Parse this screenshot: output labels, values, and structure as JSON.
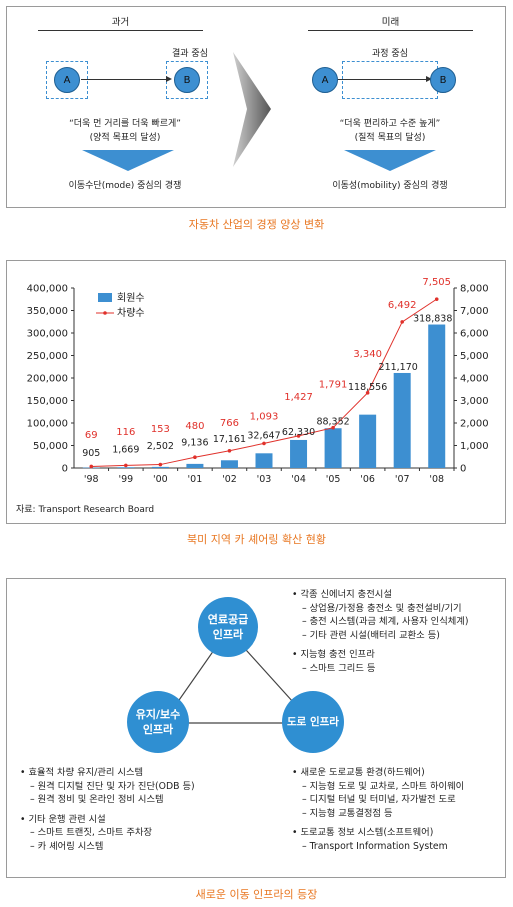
{
  "fig1": {
    "past": {
      "header": "과거",
      "focus": "결과 중심",
      "node_a": "A",
      "node_b": "B",
      "quote": "“더욱 먼 거리를 더욱 빠르게”",
      "sub": "(양적 목표의 달성)",
      "result": "이동수단(mode) 중심의 경쟁"
    },
    "future": {
      "header": "미래",
      "focus": "과정 중심",
      "node_a": "A",
      "node_b": "B",
      "quote": "“더욱 편리하고 수준 높게”",
      "sub": "(질적 목표의 달성)",
      "result": "이동성(mobility) 중심의 경쟁"
    },
    "caption": "자동차 산업의 경쟁 양상 변화"
  },
  "chart_data": {
    "type": "bar",
    "categories": [
      "'98",
      "'99",
      "'00",
      "'01",
      "'02",
      "'03",
      "'04",
      "'05",
      "'06",
      "'07",
      "'08"
    ],
    "series": [
      {
        "name": "회원수",
        "kind": "bar",
        "axis": "left",
        "color": "#3d8fd1",
        "values": [
          905,
          1669,
          2502,
          9136,
          17161,
          32647,
          62330,
          88352,
          118556,
          211170,
          318838
        ],
        "labels": [
          "905",
          "1,669",
          "2,502",
          "9,136",
          "17,161",
          "32,647",
          "62,330",
          "88,352",
          "118,556",
          "211,170",
          "318,838"
        ]
      },
      {
        "name": "차량수",
        "kind": "line",
        "axis": "right",
        "color": "#e0312b",
        "values": [
          69,
          116,
          153,
          480,
          766,
          1093,
          1427,
          1791,
          3340,
          6492,
          7505
        ],
        "labels": [
          "69",
          "116",
          "153",
          "480",
          "766",
          "1,093",
          "1,427",
          "1,791",
          "3,340",
          "6,492",
          "7,505"
        ]
      }
    ],
    "y_left": {
      "min": 0,
      "max": 400000,
      "ticks": [
        "400,000",
        "350,000",
        "300,000",
        "250,000",
        "200,000",
        "150,000",
        "100,000",
        "50,000",
        "0"
      ]
    },
    "y_right": {
      "min": 0,
      "max": 8000,
      "ticks": [
        "8,000",
        "7,000",
        "6,000",
        "5,000",
        "4,000",
        "3,000",
        "2,000",
        "1,000",
        "0"
      ]
    },
    "legend_placement": "top-left",
    "grid": false,
    "source": "자료: Transport Research Board"
  },
  "fig2_caption": "북미 지역 카 셰어링 확산 현황",
  "fig3": {
    "nodes": {
      "top": [
        "연료공급",
        "인프라"
      ],
      "left": [
        "유지/보수",
        "인프라"
      ],
      "right": [
        "도로 인프라"
      ]
    },
    "top_right": [
      "• 각종 신에너지 충전시설",
      "– 상업용/가정용 충전소 및 충전설비/기기",
      "– 충전 시스템(과금 체계, 사용자 인식체계)",
      "– 기타 관련 시설(배터리 교환소 등)",
      "",
      "• 지능형 충전 인프라",
      "– 스마트 그리드 등"
    ],
    "bottom_left": [
      "• 효율적 차량 유지/관리 시스템",
      "– 원격 디지털 진단 및 자가 진단(ODB 등)",
      "– 원격 정비 및 온라인 정비 시스템",
      "",
      "• 기타 운행 관련 시설",
      "– 스마트 트랜짓, 스마트 주차장",
      "– 카 셰어링 시스템"
    ],
    "bottom_right": [
      "• 새로운 도로교통 환경(하드웨어)",
      "– 지능형 도로 및 교차로, 스마트 하이웨이",
      "– 디지털 터널 및 터미널, 자가발전 도로",
      "– 지능형 교통결정점 등",
      "",
      "• 도로교통 정보 시스템(소프트웨어)",
      "– Transport Information System"
    ],
    "caption": "새로운 이동 인프라의 등장"
  }
}
